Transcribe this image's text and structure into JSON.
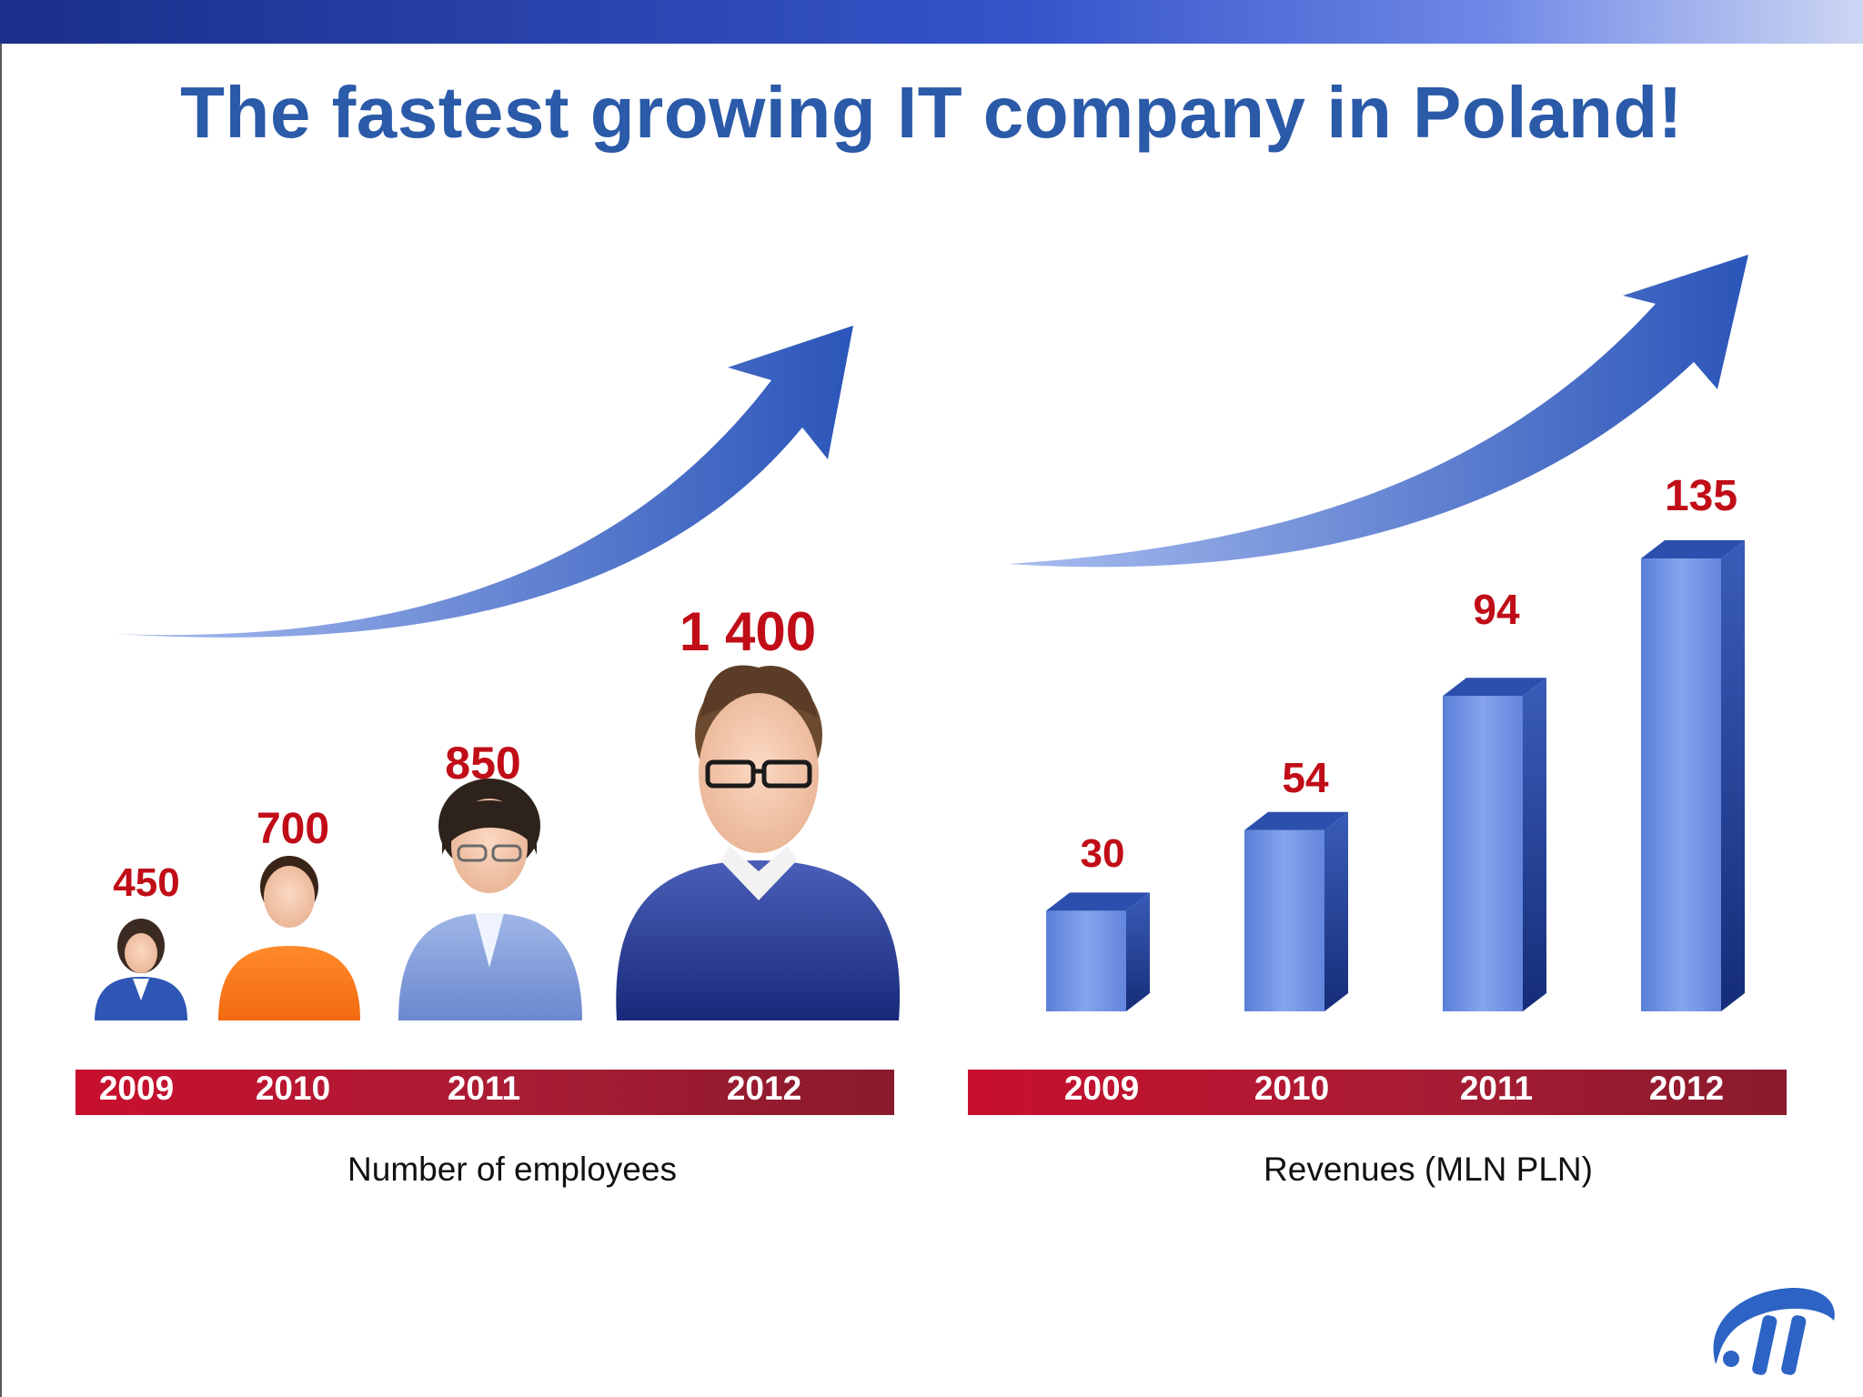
{
  "slide": {
    "title": "The fastest growing IT company in Poland!"
  },
  "colors": {
    "title": "#2a5aa8",
    "value_label": "#c00d17",
    "axis_bar": "#b3162f",
    "bar_face": "#6c8fe2",
    "arrow": "#3a62c4"
  },
  "icons": [
    "woman-small-icon",
    "man-orange-icon",
    "woman-glasses-icon",
    "man-glasses-icon",
    "company-logo-icon"
  ],
  "chart_data": [
    {
      "type": "bar",
      "categories": [
        "2009",
        "2010",
        "2011",
        "2012"
      ],
      "values": [
        450,
        700,
        850,
        1400
      ],
      "value_labels": [
        "450",
        "700",
        "850",
        "1 400"
      ],
      "title": "",
      "xlabel": "Number of employees",
      "ylabel": "",
      "note": "values drawn as person icons of increasing size"
    },
    {
      "type": "bar",
      "categories": [
        "2009",
        "2010",
        "2011",
        "2012"
      ],
      "values": [
        30,
        54,
        94,
        135
      ],
      "value_labels": [
        "30",
        "54",
        "94",
        "135"
      ],
      "title": "",
      "xlabel": "Revenues (MLN PLN)",
      "ylabel": "",
      "ylim": [
        0,
        135
      ]
    }
  ]
}
